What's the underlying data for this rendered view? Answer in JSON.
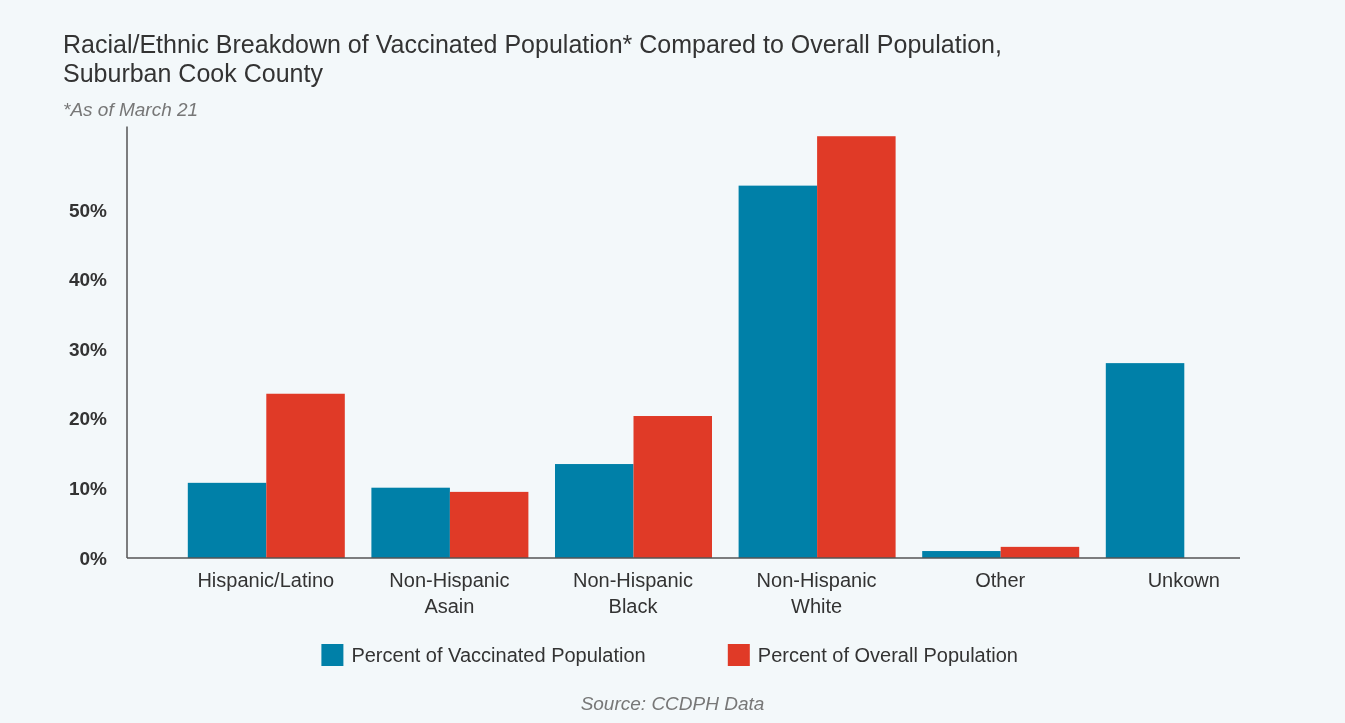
{
  "chart_data": {
    "type": "bar",
    "title": "Racial/Ethnic Breakdown of Vaccinated Population* Compared to Overall Population, Suburban Cook County",
    "subtitle": "*As of March 21",
    "categories": [
      "Hispanic/Latino",
      "Non-Hispanic Asain",
      "Non-Hispanic Black",
      "Non-Hispanic White",
      "Other",
      "Unkown"
    ],
    "series": [
      {
        "name": "Percent of Vaccinated Population",
        "color": "#0080a8",
        "values": [
          10.8,
          10.1,
          13.5,
          53.5,
          1.0,
          28.0
        ]
      },
      {
        "name": "Percent of Overall Population",
        "color": "#e03a27",
        "values": [
          23.6,
          9.5,
          20.4,
          60.6,
          1.6,
          null
        ]
      }
    ],
    "ylim": [
      0,
      62
    ],
    "yticks": [
      {
        "value": 0,
        "label": "0%"
      },
      {
        "value": 10,
        "label": "10%"
      },
      {
        "value": 20,
        "label": "20%"
      },
      {
        "value": 30,
        "label": "30%"
      },
      {
        "value": 40,
        "label": "40%"
      },
      {
        "value": 50,
        "label": "50%"
      }
    ],
    "grid": false,
    "legend": "bottom",
    "annotations": [
      "Source: CCDPH Data"
    ]
  }
}
